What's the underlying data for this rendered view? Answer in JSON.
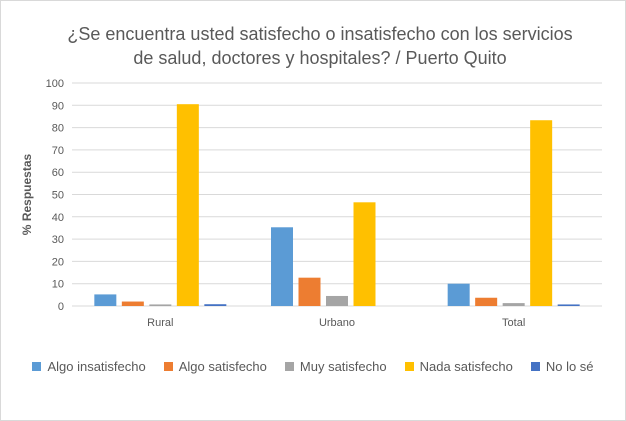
{
  "chart_data": {
    "type": "bar",
    "title_lines": [
      "¿Se encuentra usted satisfecho o insatisfecho con los servicios",
      "de salud, doctores y hospitales? / Puerto Quito"
    ],
    "ylabel": "% Respuestas",
    "xlabel": "",
    "ylim": [
      0,
      100
    ],
    "yticks": [
      0,
      10,
      20,
      30,
      40,
      50,
      60,
      70,
      80,
      90,
      100
    ],
    "grid": true,
    "legend_position": "bottom",
    "categories": [
      "Rural",
      "Urbano",
      "Total"
    ],
    "series": [
      {
        "name": "Algo insatisfecho",
        "color": "#5b9bd5",
        "values": [
          5.2,
          35.3,
          10
        ]
      },
      {
        "name": "Algo satisfecho",
        "color": "#ed7d31",
        "values": [
          2,
          12.7,
          3.7
        ]
      },
      {
        "name": "Muy satisfecho",
        "color": "#a5a5a5",
        "values": [
          0.7,
          4.5,
          1.3
        ]
      },
      {
        "name": "Nada satisfecho",
        "color": "#ffc000",
        "values": [
          90.5,
          46.5,
          83.3
        ]
      },
      {
        "name": "No lo sé",
        "color": "#4472c4",
        "values": [
          0.8,
          0,
          0.7
        ]
      }
    ]
  }
}
